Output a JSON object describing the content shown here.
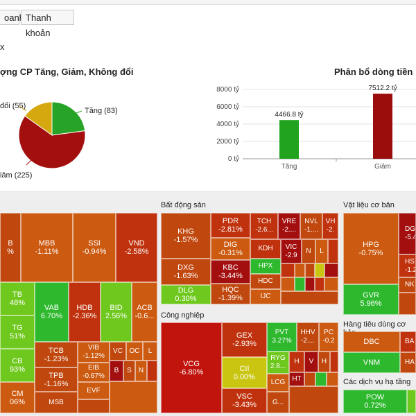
{
  "tabs": [
    {
      "label": "oanh"
    },
    {
      "label": "Thanh khoản"
    }
  ],
  "section_label": "x",
  "pie_chart": {
    "title": "ợng CP Tăng, Giảm, Không đổi",
    "chart_data": {
      "type": "pie",
      "slices": [
        {
          "name": "Tăng",
          "value": 83,
          "color": "#27a327"
        },
        {
          "name": "Giảm",
          "value": 225,
          "color": "#a30f0f"
        },
        {
          "name": "Không đổi",
          "value": 55,
          "color": "#d4a80e"
        }
      ],
      "labels": {
        "up": "Tăng (83)",
        "down": "iảm (225)",
        "flat": "đổi (55)"
      }
    }
  },
  "bar_chart": {
    "title": "Phân bổ dòng tiền",
    "chart_data": {
      "type": "bar",
      "categories": [
        "Tăng",
        "Giảm"
      ],
      "values": [
        4466.8,
        7512.2
      ],
      "value_labels": [
        "4466.8 tỷ",
        "7512.2 tỷ"
      ],
      "colors": [
        "#22a31f",
        "#9b0d0d"
      ],
      "ylim": [
        0,
        8000
      ],
      "yticks": [
        "0 tỷ",
        "2000 tỷ",
        "4000 tỷ",
        "6000 tỷ",
        "8000 tỷ"
      ]
    }
  },
  "panels": {
    "bds": "Bất động sản",
    "vlcb": "Vật liệu cơ bản",
    "cn": "Công nghiệp",
    "htdcb": "Hàng tiêu dùng cơ bản",
    "cdvht": "Các dịch vụ hạ tầng"
  },
  "colors": {
    "red": "#c0320d",
    "deep_red": "#a30f0f",
    "orange": "#cc5a10",
    "green": "#2db82d",
    "light_green": "#6fc81e",
    "yellow": "#c9c511"
  },
  "tiles": {
    "bank": [
      {
        "t": "B",
        "p": "%"
      },
      {
        "t": "MBB",
        "p": "-1.11%"
      },
      {
        "t": "SSI",
        "p": "-0.94%"
      },
      {
        "t": "VND",
        "p": "-2.58%"
      },
      {
        "t": "TB",
        "p": "48%"
      },
      {
        "t": "VAB",
        "p": "6.70%"
      },
      {
        "t": "HDB",
        "p": "-2.36%"
      },
      {
        "t": "BID",
        "p": "2.56%"
      },
      {
        "t": "ACB",
        "p": "-0.6..."
      },
      {
        "t": "TG",
        "p": "51%"
      },
      {
        "t": "CB",
        "p": "93%"
      },
      {
        "t": "TCB",
        "p": "-1.23%"
      },
      {
        "t": "VIB",
        "p": "-1.12%"
      },
      {
        "t": "VC",
        "p": ""
      },
      {
        "t": "OC",
        "p": ""
      },
      {
        "t": "L",
        "p": ""
      },
      {
        "t": "TPB",
        "p": "-1.16%"
      },
      {
        "t": "EIB",
        "p": "-0.67%"
      },
      {
        "t": "B",
        "p": ""
      },
      {
        "t": "S",
        "p": ""
      },
      {
        "t": "N",
        "p": ""
      },
      {
        "t": "CM",
        "p": "06%"
      },
      {
        "t": "MSB",
        "p": ""
      },
      {
        "t": "EVF",
        "p": ""
      }
    ],
    "bds": [
      {
        "t": "KHG",
        "p": "-1.57%"
      },
      {
        "t": "PDR",
        "p": "-2.81%"
      },
      {
        "t": "TCH",
        "p": "-2.6..."
      },
      {
        "t": "VRE",
        "p": "-2...."
      },
      {
        "t": "NVL",
        "p": "-1...."
      },
      {
        "t": "VH",
        "p": "-2."
      },
      {
        "t": "DIG",
        "p": "-0.31%"
      },
      {
        "t": "KDH",
        "p": ""
      },
      {
        "t": "VIC",
        "p": "-2.9"
      },
      {
        "t": "N",
        "p": ""
      },
      {
        "t": "L",
        "p": ""
      },
      {
        "t": "DXG",
        "p": "-1.63%"
      },
      {
        "t": "KBC",
        "p": "-3.44%"
      },
      {
        "t": "HPX",
        "p": ""
      },
      {
        "t": "HDC",
        "p": ""
      },
      {
        "t": "DLG",
        "p": "0.30%"
      },
      {
        "t": "HQC",
        "p": "-1.39%"
      },
      {
        "t": "IJC",
        "p": ""
      }
    ],
    "vlcb": [
      {
        "t": "HPG",
        "p": "-0.75%"
      },
      {
        "t": "DG",
        "p": "-5.4"
      },
      {
        "t": "HS",
        "p": "-1.2"
      },
      {
        "t": "NK",
        "p": ""
      },
      {
        "t": "GVR",
        "p": "5.96%"
      }
    ],
    "cn": [
      {
        "t": "VCG",
        "p": "-6.80%"
      },
      {
        "t": "GEX",
        "p": "-2.93%"
      },
      {
        "t": "PVT",
        "p": "3.27%"
      },
      {
        "t": "HHV",
        "p": "-2...."
      },
      {
        "t": "PC",
        "p": "-0.2"
      },
      {
        "t": "CII",
        "p": "0.00%"
      },
      {
        "t": "RYG",
        "p": "2.8..."
      },
      {
        "t": "H",
        "p": ""
      },
      {
        "t": "V",
        "p": ""
      },
      {
        "t": "H",
        "p": ""
      },
      {
        "t": "LCG",
        "p": ""
      },
      {
        "t": "HT",
        "p": ""
      },
      {
        "t": "VSC",
        "p": "-3.43%"
      },
      {
        "t": "G...",
        "p": ""
      }
    ],
    "htdcb": [
      {
        "t": "DBC",
        "p": ""
      },
      {
        "t": "BA",
        "p": ""
      },
      {
        "t": "VNM",
        "p": ""
      },
      {
        "t": "HA",
        "p": ""
      }
    ],
    "cdvht": [
      {
        "t": "POW",
        "p": "0.72%"
      }
    ]
  }
}
